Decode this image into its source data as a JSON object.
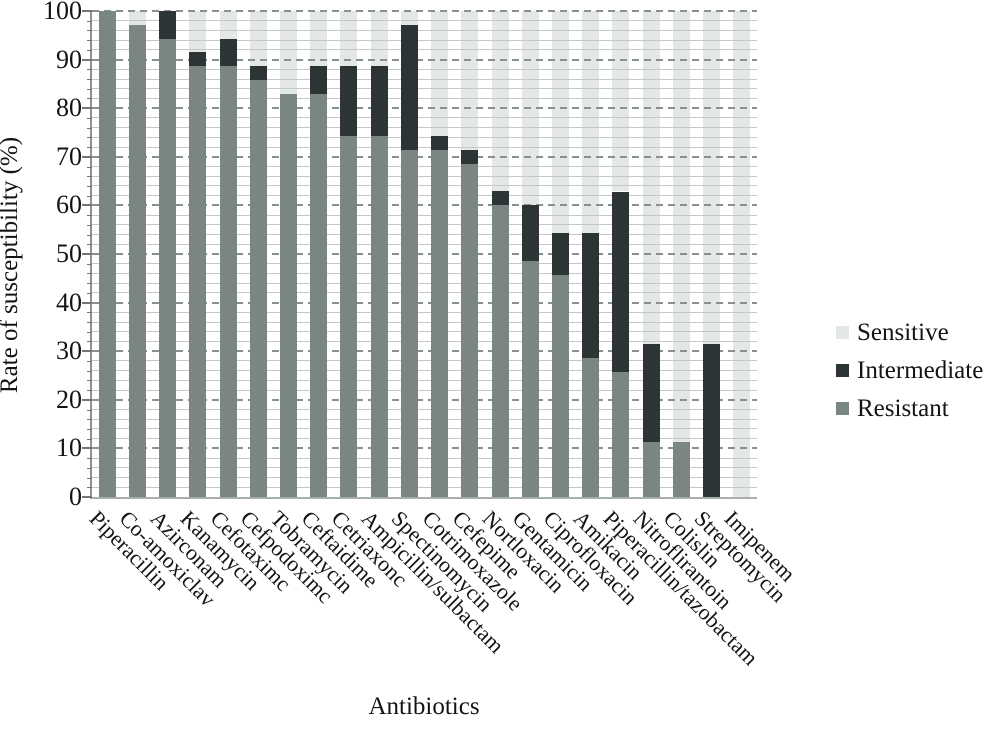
{
  "chart_data": {
    "type": "bar",
    "stacked": true,
    "title": "",
    "xlabel": "Antibiotics",
    "ylabel": "Rate of susceptibility (%)",
    "ylim": [
      0,
      100
    ],
    "yticks": [
      0,
      10,
      20,
      30,
      40,
      50,
      60,
      70,
      80,
      90,
      100
    ],
    "grid": {
      "minor_step": 2,
      "major_step": 10,
      "minor_style": "solid",
      "major_style": "dashed"
    },
    "categories": [
      "Piperacillin",
      "Co-amoxiclav",
      "Azirconam",
      "Kanamycin",
      "Cefotaximc",
      "Cefpodoximc",
      "Tobramycin",
      "Ceftaidime",
      "Cetriaxonc",
      "Ampicillin/sulbactam",
      "Spectinomycin",
      "Cotrimoxazole",
      "Cefepime",
      "Nortloxacin",
      "Gentamicin",
      "Ciprofloxacin",
      "Amikacin",
      "Piperacillin/tazobactam",
      "Nitroflirantoin",
      "Colislin",
      "Streptomycin",
      "Imipenem"
    ],
    "series": [
      {
        "name": "Resistant",
        "color": "#7a8682",
        "values": [
          100,
          97.1,
          94.3,
          88.6,
          88.6,
          85.7,
          82.9,
          82.9,
          74.3,
          74.3,
          71.4,
          71.4,
          68.6,
          60,
          48.6,
          45.7,
          28.6,
          25.7,
          11.4,
          11.4,
          0,
          0
        ]
      },
      {
        "name": "Intermediate",
        "color": "#2c3436",
        "values": [
          0,
          0,
          5.7,
          2.9,
          5.7,
          2.9,
          0,
          5.7,
          14.3,
          14.3,
          25.7,
          2.9,
          2.9,
          2.9,
          11.4,
          8.6,
          25.7,
          37.1,
          20,
          0,
          31.4,
          0
        ]
      },
      {
        "name": "Sensitive",
        "color": "#e4e8e5",
        "values": [
          0,
          2.9,
          0,
          8.6,
          5.7,
          11.4,
          17.1,
          11.4,
          11.4,
          11.4,
          2.9,
          25.7,
          28.6,
          37.1,
          40,
          45.7,
          45.7,
          37.1,
          68.6,
          88.6,
          68.6,
          100
        ]
      }
    ],
    "legend": {
      "position": "right",
      "entries": [
        "Sensitive",
        "Intermediate",
        "Resistant"
      ]
    },
    "colors": {
      "gridline_minor": "#c4c8c6",
      "gridline_major": "#8a908e",
      "axis": "#8d9391",
      "text": "#141414"
    }
  }
}
